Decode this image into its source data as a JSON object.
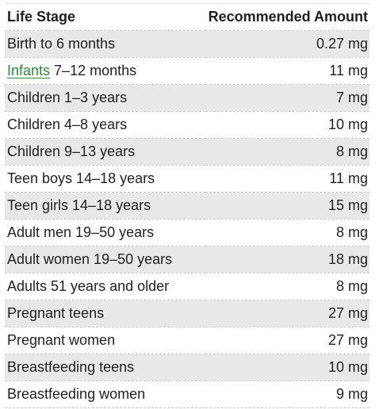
{
  "table": {
    "headers": {
      "stage": "Life Stage",
      "amount": "Recommended Amount"
    },
    "rows": [
      {
        "stage": "Birth to 6 months",
        "amount": "0.27 mg"
      },
      {
        "link": "Infants",
        "stage": " 7–12 months",
        "amount": "11 mg"
      },
      {
        "stage": "Children 1–3 years",
        "amount": "7 mg"
      },
      {
        "stage": "Children 4–8 years",
        "amount": "10 mg"
      },
      {
        "stage": "Children 9–13 years",
        "amount": "8 mg"
      },
      {
        "stage": "Teen boys 14–18 years",
        "amount": "11 mg"
      },
      {
        "stage": "Teen girls 14–18 years",
        "amount": "15 mg"
      },
      {
        "stage": "Adult men 19–50 years",
        "amount": "8 mg"
      },
      {
        "stage": "Adult women 19–50 years",
        "amount": "18 mg"
      },
      {
        "stage": "Adults 51 years and older",
        "amount": "8 mg"
      },
      {
        "stage": "Pregnant teens",
        "amount": "27 mg"
      },
      {
        "stage": "Pregnant women",
        "amount": "27 mg"
      },
      {
        "stage": "Breastfeeding teens",
        "amount": "10 mg"
      },
      {
        "stage": "Breastfeeding women",
        "amount": "9 mg"
      }
    ]
  },
  "colors": {
    "link": "#2b8a3e",
    "stripe": "#e8e8e8"
  }
}
